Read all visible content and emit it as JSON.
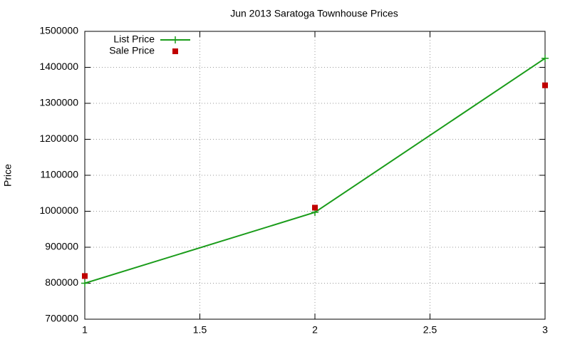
{
  "chart_data": {
    "type": "line",
    "title": "Jun 2013 Saratoga Townhouse Prices",
    "y_label": "Price",
    "x": [
      1,
      2,
      3
    ],
    "series": [
      {
        "name": "List Price",
        "color": "#1a9c1a",
        "style": "linespoints",
        "values": [
          800000,
          997000,
          1425000
        ]
      },
      {
        "name": "Sale Price",
        "color": "#c00000",
        "style": "points",
        "values": [
          820000,
          1010000,
          1350000
        ]
      }
    ],
    "xlim": [
      1,
      3
    ],
    "xticks": [
      1,
      1.5,
      2,
      2.5,
      3
    ],
    "ylim": [
      700000,
      1500000
    ],
    "yticks": [
      700000,
      800000,
      900000,
      1000000,
      1100000,
      1200000,
      1300000,
      1400000,
      1500000
    ],
    "grid": true,
    "legend": "top-left"
  }
}
